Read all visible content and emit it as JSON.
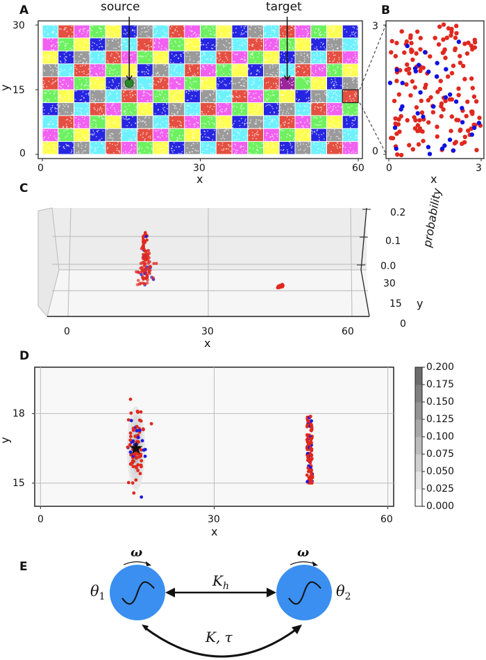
{
  "chart_data": [
    {
      "id": "A",
      "type": "scatter",
      "panel_label": "A",
      "title": "",
      "xlabel": "x",
      "ylabel": "y",
      "xlim": [
        0,
        60
      ],
      "ylim": [
        0,
        30
      ],
      "xticks": [
        "0",
        "30",
        "60"
      ],
      "yticks": [
        "0",
        "15",
        "30"
      ],
      "grid": false,
      "cell_size": 3,
      "columns": 20,
      "rows": 10,
      "palette": {
        "c": "#55eeff",
        "r": "#e03020",
        "m": "#ee44ee",
        "g": "#55ee44",
        "y": "#ffff33",
        "b": "#0000dd",
        "k": "#888888",
        "s": "#2a8a2a",
        "t": "#880088"
      },
      "color_rows_top_to_bottom": [
        "crmgybkcrmgybkcrmgyb",
        "mgybkcrmgybkcrmgybkc",
        "ybkcrmgybkcrmgybkcrm",
        "kcrmgybkcrmgybkcrmgy",
        "rmgybkcrmgybkcrtgybk",
        "gybkcrmgybkcrmgybkcr",
        "bkcrmgybkcrmgybkcrmg",
        "crmgybkcrmgybkcrmgyb",
        "mgybkcrmgybkcrmgybkc",
        "ybkcrmgybkcrmgybkcrm"
      ],
      "annotations": [
        {
          "text": "source",
          "x": 16.5,
          "y": 16.5
        },
        {
          "text": "target",
          "x": 46.5,
          "y": 16.5
        }
      ],
      "highlight_box": {
        "x": [
          57,
          60
        ],
        "y": [
          12,
          15
        ]
      }
    },
    {
      "id": "B",
      "type": "scatter",
      "panel_label": "B",
      "xlabel": "x",
      "ylabel": "",
      "xlim": [
        0,
        3
      ],
      "ylim": [
        0,
        3
      ],
      "xticks": [
        "0",
        "3"
      ],
      "yticks": [
        "0",
        "3"
      ],
      "series": [
        {
          "name": "red",
          "color": "#e0281e",
          "count": 160
        },
        {
          "name": "blue",
          "color": "#1010e0",
          "count": 35
        }
      ]
    },
    {
      "id": "C",
      "type": "scatter",
      "panel_label": "C",
      "xlabel": "x",
      "ylabel": "y",
      "zlabel": "probability",
      "xticks": [
        "0",
        "30",
        "60"
      ],
      "yticks": [
        "0",
        "15",
        "30"
      ],
      "zticks": [
        "0.0",
        "0.1",
        "0.2"
      ],
      "peaks": [
        {
          "x": 16.5,
          "y": 16.5,
          "height": 0.12
        },
        {
          "x": 46.5,
          "y": 16.5,
          "height": 0.0
        }
      ]
    },
    {
      "id": "D",
      "type": "heatmap",
      "panel_label": "D",
      "xlabel": "x",
      "ylabel": "y",
      "xlim": [
        -1,
        61
      ],
      "ylim": [
        14,
        20
      ],
      "xticks": [
        "0",
        "30",
        "60"
      ],
      "yticks": [
        "15",
        "18"
      ],
      "grid": true,
      "colorbar": {
        "ticks": [
          "0.000",
          "0.025",
          "0.050",
          "0.075",
          "0.100",
          "0.125",
          "0.150",
          "0.175",
          "0.200"
        ],
        "range": [
          0,
          0.2
        ]
      },
      "marker": {
        "type": "star",
        "x": 16.5,
        "y": 16.5
      },
      "clusters": [
        {
          "center_x": 16.5,
          "center_y": 16.5,
          "spread_x": 0.8,
          "spread_y": 0.9
        },
        {
          "center_x": 46.5,
          "center_y": 16.5,
          "spread_x": 0.3,
          "spread_y": 0.85
        }
      ]
    }
  ],
  "panel_E": {
    "label": "E",
    "left_osc": {
      "theta": "θ",
      "sub": "1",
      "omega": "ω"
    },
    "right_osc": {
      "theta": "θ",
      "sub": "2",
      "omega": "ω"
    },
    "top_link": {
      "main": "K",
      "sub": "h"
    },
    "bottom_link": "K, τ",
    "circle_color": "#3a8ff0"
  }
}
